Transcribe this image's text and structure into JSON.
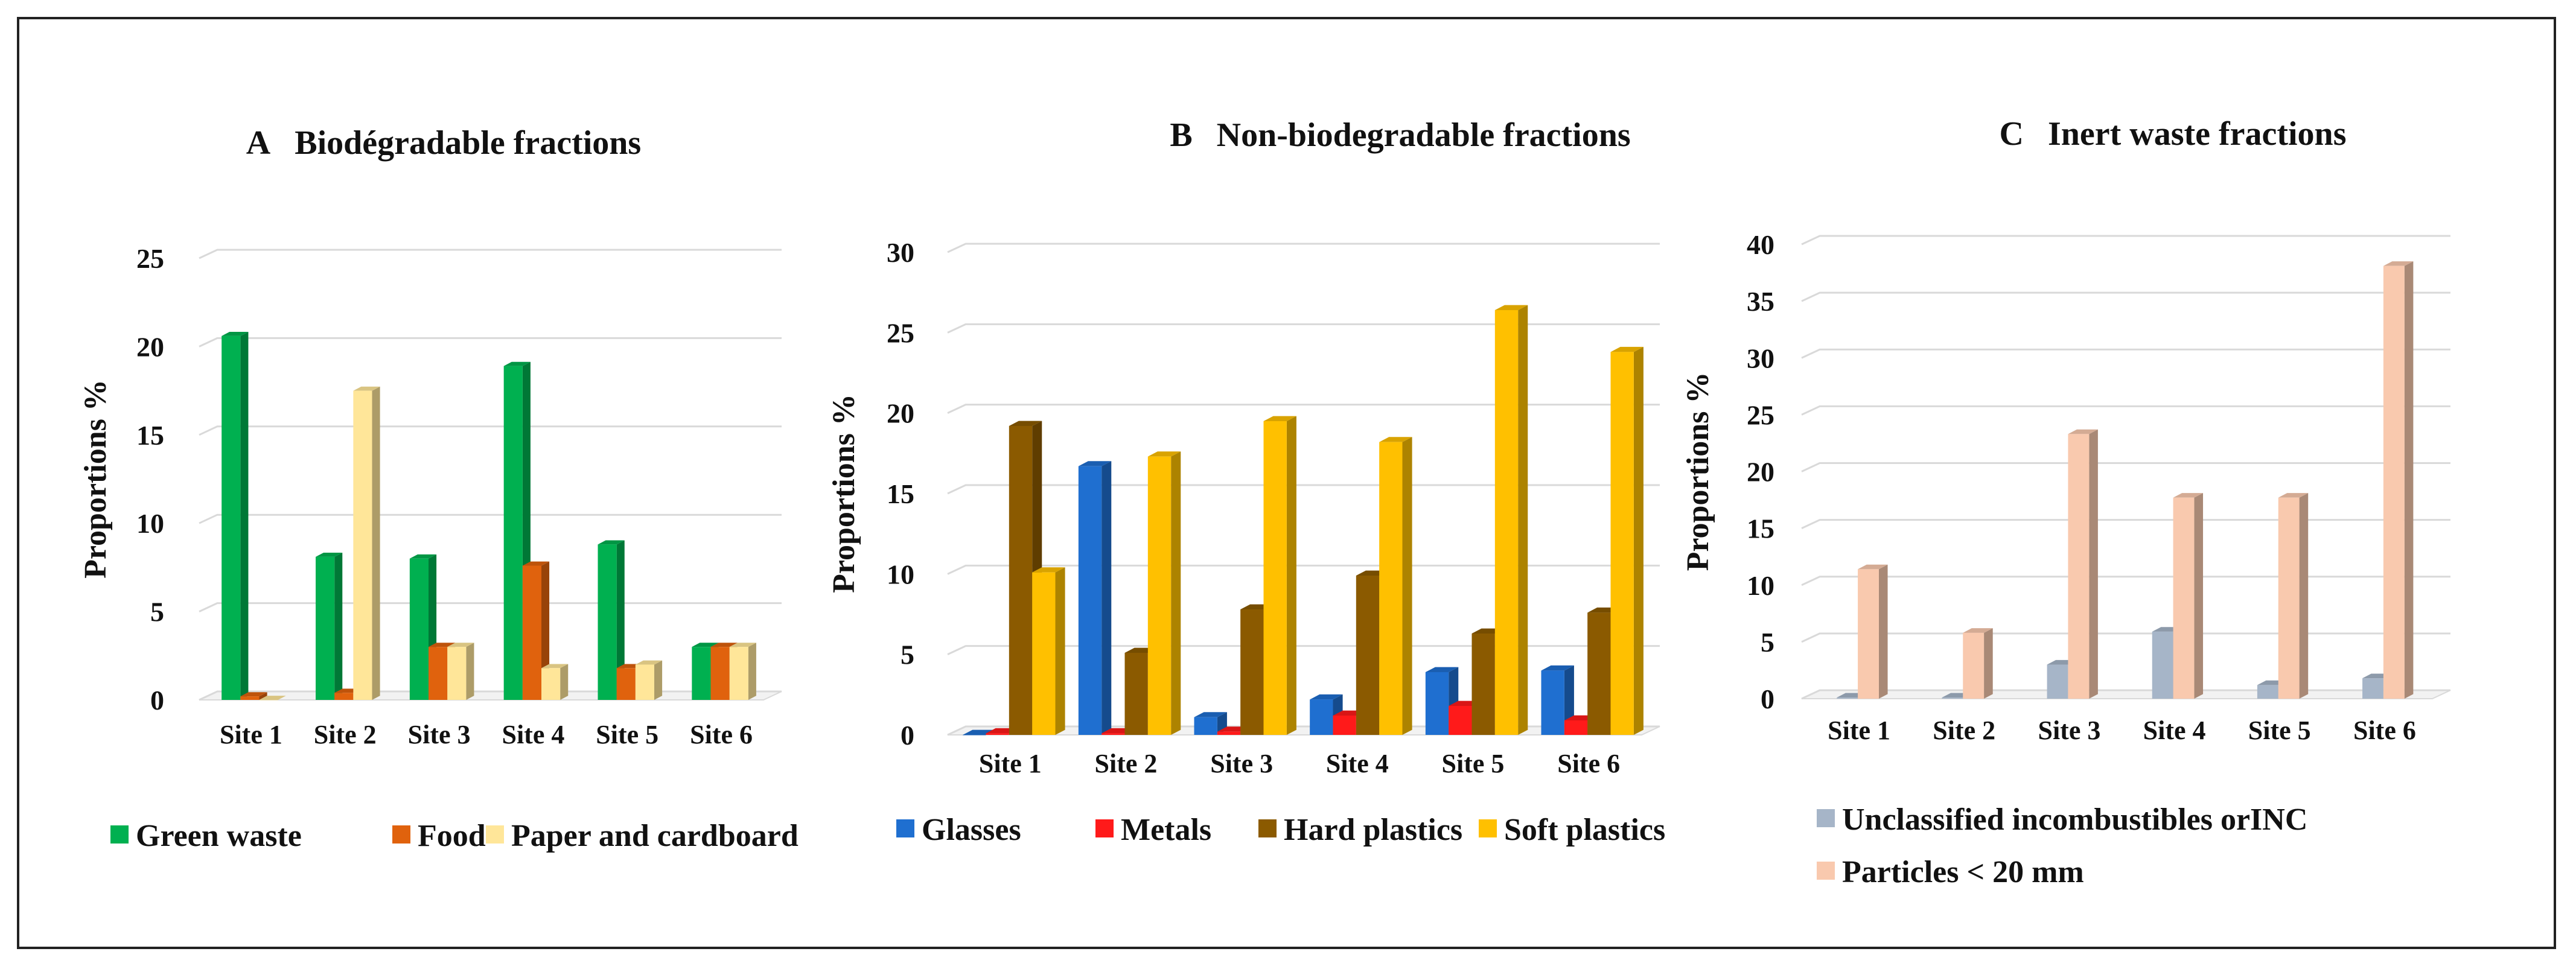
{
  "chart_data": [
    {
      "type": "bar",
      "letter": "A",
      "title": "Biodégradable  fractions",
      "ylabel": "Proportions  %",
      "xlabel": "",
      "ylim": [
        0,
        25
      ],
      "yticks": [
        0,
        5,
        10,
        15,
        20,
        25
      ],
      "grid": true,
      "legend_position": "bottom",
      "categories": [
        "Site 1",
        "Site 2",
        "Site 3",
        "Site 4",
        "Site 5",
        "Site 6"
      ],
      "series": [
        {
          "name": "Green waste",
          "color": "#00B050",
          "values": [
            20.6,
            8.1,
            8.0,
            18.9,
            8.8,
            3.0
          ]
        },
        {
          "name": "Food",
          "color": "#E0620D",
          "values": [
            0.2,
            0.4,
            3.0,
            7.6,
            1.8,
            3.0
          ]
        },
        {
          "name": "Paper and cardboard",
          "color": "#FFE699",
          "values": [
            0.0,
            17.5,
            3.0,
            1.8,
            2.0,
            3.0
          ]
        }
      ]
    },
    {
      "type": "bar",
      "letter": "B",
      "title": "Non-biodegradable  fractions",
      "ylabel": "Proportions %",
      "xlabel": "",
      "ylim": [
        0,
        30
      ],
      "yticks": [
        0,
        5,
        10,
        15,
        20,
        25,
        30
      ],
      "grid": true,
      "legend_position": "bottom",
      "categories": [
        "Site 1",
        "Site 2",
        "Site 3",
        "Site 4",
        "Site 5",
        "Site 6"
      ],
      "series": [
        {
          "name": "Glasses",
          "color": "#1F6FD0",
          "values": [
            0.0,
            16.7,
            1.1,
            2.2,
            3.9,
            4.0
          ]
        },
        {
          "name": "Metals",
          "color": "#FF1A1A",
          "values": [
            0.1,
            0.1,
            0.2,
            1.2,
            1.8,
            0.9
          ]
        },
        {
          "name": "Hard plastics",
          "color": "#8B5A00",
          "values": [
            19.2,
            5.1,
            7.8,
            9.9,
            6.3,
            7.6
          ]
        },
        {
          "name": "Soft plastics",
          "color": "#FFC000",
          "values": [
            10.1,
            17.3,
            19.5,
            18.2,
            26.4,
            23.8
          ]
        }
      ]
    },
    {
      "type": "bar",
      "letter": "C",
      "title": "Inert  waste fractions",
      "ylabel": "Proportions  %",
      "xlabel": "",
      "ylim": [
        0,
        40
      ],
      "yticks": [
        0,
        5,
        10,
        15,
        20,
        25,
        30,
        35,
        40
      ],
      "grid": true,
      "legend_position": "bottom",
      "categories": [
        "Site 1",
        "Site 2",
        "Site 3",
        "Site 4",
        "Site 5",
        "Site 6"
      ],
      "series": [
        {
          "name": "Unclassified incombustibles orINC",
          "color": "#A6B5C8",
          "values": [
            0.1,
            0.1,
            3.0,
            5.9,
            1.2,
            1.8
          ]
        },
        {
          "name": "Particles < 20 mm",
          "color": "#F9C9AE",
          "values": [
            11.4,
            5.8,
            23.3,
            17.7,
            17.7,
            38.1
          ]
        }
      ]
    }
  ]
}
